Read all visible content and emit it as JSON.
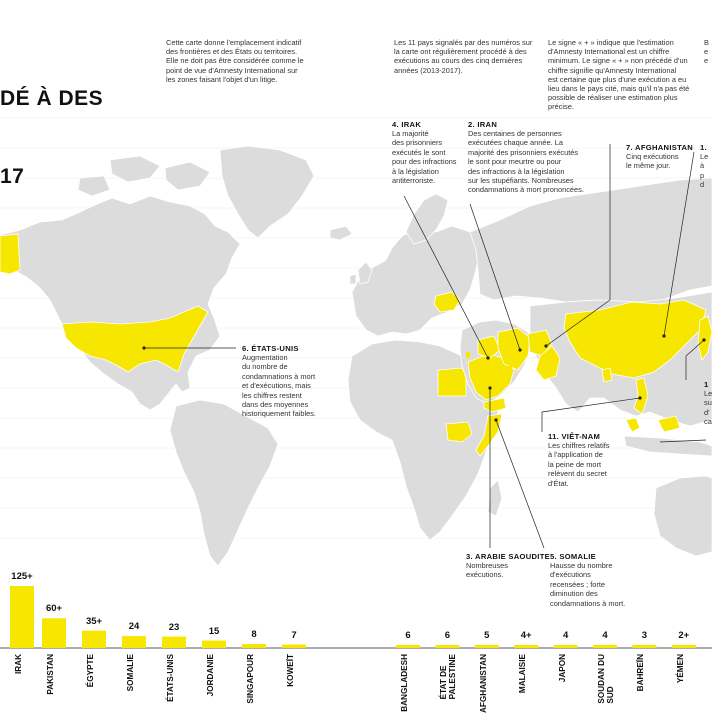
{
  "header": {
    "title_lines": [
      "DÉ À DES",
      "17"
    ]
  },
  "notes": {
    "note1": "Cette carte donne l'emplacement indicatif\ndes frontières et des États ou territoires.\nElle ne doit pas être considérée comme le\npoint de vue d'Amnesty International sur\nles zones faisant l'objet d'un litige.",
    "note2": "Les 11 pays signalés par des numéros sur\nla carte ont régulièrement procédé à des\nexécutions au cours des cinq dernières\nannées (2013-2017).",
    "note3": "Le signe « + » indique que l'estimation\nd'Amnesty International est un chiffre\nminimum. Le signe « + » non précédé d'un\nchiffre signifie qu'Amnesty International\nest certaine que plus d'une exécution a eu\nlieu dans le pays cité, mais qu'il n'a pas été\npossible de réaliser une estimation plus\nprécise.",
    "note4": "B\ne\ne"
  },
  "callouts": [
    {
      "id": "irak",
      "title": "4. IRAK",
      "body": "La majorité\ndes prisonniers\nexécutés le sont\npour des infractions\nà la législation\nantiterroriste."
    },
    {
      "id": "iran",
      "title": "2. IRAN",
      "body": "Des centaines de personnes\nexécutées chaque année. La\nmajorité des prisonniers exécutés\nle sont pour meurtre ou pour\ndes infractions à la législation\nsur les stupéfiants. Nombreuses\ncondamnations à mort prononcées."
    },
    {
      "id": "afghanistan",
      "title": "7. AFGHANISTAN",
      "body": "Cinq exécutions\nle même jour."
    },
    {
      "id": "china-cut",
      "title": "1.",
      "body": "Le\nà\np\nd"
    },
    {
      "id": "usa",
      "title": "6. ÉTATS-UNIS",
      "body": "Augmentation\ndu nombre de\ncondamnations à mort\net d'exécutions, mais\nles chiffres restent\ndans des moyennes\nhistoriquement faibles."
    },
    {
      "id": "japan-cut",
      "title": "1",
      "body": "Le\nsu\nd'\nca"
    },
    {
      "id": "vietnam",
      "title": "11. VIÊT-NAM",
      "body": "Les chiffres relatifs\nà l'application de\nla peine de mort\nrelèvent du secret\nd'État."
    },
    {
      "id": "saudi",
      "title": "3. ARABIE SAOUDITE",
      "body": "Nombreuses\nexécutions."
    },
    {
      "id": "somalia",
      "title": "5. SOMALIE",
      "body": "Hausse du nombre\nd'exécutions\nrecensées ; forte\ndiminution des\ncondamnations à mort."
    }
  ],
  "chart_data": [
    {
      "type": "bar",
      "categories": [
        "IRAK",
        "PAKISTAN",
        "ÉGYPTE",
        "SOMALIE",
        "ÉTATS-UNIS",
        "JORDANIE",
        "SINGAPOUR",
        "KOWEÏT"
      ],
      "labels": [
        "125+",
        "60+",
        "35+",
        "24",
        "23",
        "15",
        "8",
        "7"
      ],
      "values": [
        125,
        60,
        35,
        24,
        23,
        15,
        8,
        7
      ]
    },
    {
      "type": "bar",
      "categories": [
        "BANGLADESH",
        "ÉTAT DE\nPALESTINE",
        "AFGHANISTAN",
        "MALAISIE",
        "JAPON",
        "SOUDAN DU\nSUD",
        "BAHREÏN",
        "YÉMEN"
      ],
      "labels": [
        "6",
        "6",
        "5",
        "4+",
        "4",
        "4",
        "3",
        "2+"
      ],
      "values": [
        6,
        6,
        5,
        4,
        4,
        4,
        3,
        2
      ]
    }
  ],
  "colors": {
    "highlight": "#f7e600",
    "land": "#dcdcdc",
    "border": "#ffffff",
    "text": "#222222"
  }
}
